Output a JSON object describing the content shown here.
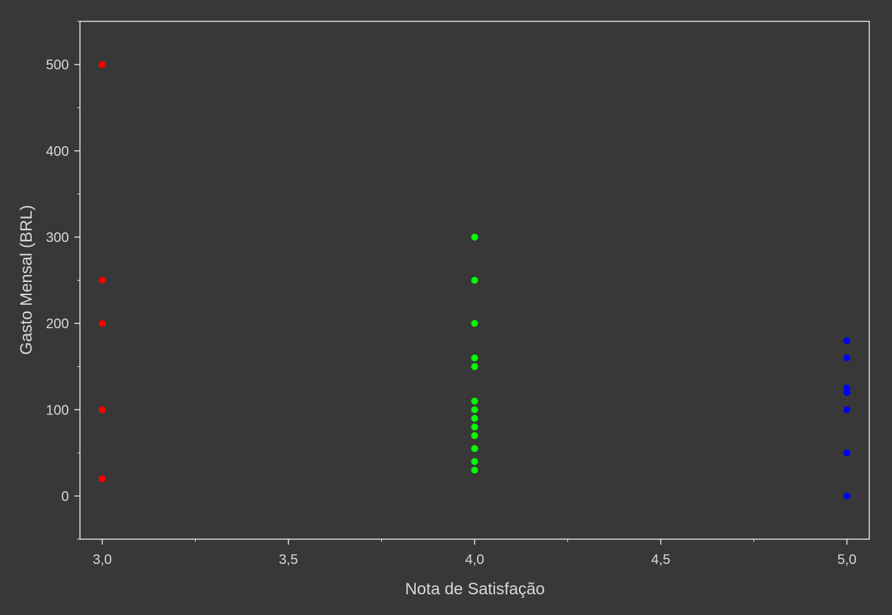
{
  "chart_data": {
    "type": "scatter",
    "title": "",
    "xlabel": "Nota de Satisfação",
    "ylabel": "Gasto Mensal (BRL)",
    "xlim": [
      2.94,
      5.06
    ],
    "ylim": [
      -50,
      550
    ],
    "x_ticks": [
      3.0,
      3.5,
      4.0,
      4.5,
      5.0
    ],
    "x_tick_labels": [
      "3,0",
      "3,5",
      "4,0",
      "4,5",
      "5,0"
    ],
    "y_ticks": [
      0,
      100,
      200,
      300,
      400,
      500
    ],
    "y_tick_labels": [
      "0",
      "100",
      "200",
      "300",
      "400",
      "500"
    ],
    "grid": false,
    "legend": "none",
    "colors": {
      "background": "#383838",
      "axis": "#e6e6e6",
      "text": "#d9d9d9"
    },
    "series": [
      {
        "color": "#ff0000",
        "points": [
          {
            "x": 3,
            "y": 500
          },
          {
            "x": 3,
            "y": 250
          },
          {
            "x": 3,
            "y": 200
          },
          {
            "x": 3,
            "y": 100
          },
          {
            "x": 3,
            "y": 20
          }
        ]
      },
      {
        "color": "#00ff00",
        "points": [
          {
            "x": 4,
            "y": 300
          },
          {
            "x": 4,
            "y": 250
          },
          {
            "x": 4,
            "y": 200
          },
          {
            "x": 4,
            "y": 160
          },
          {
            "x": 4,
            "y": 150
          },
          {
            "x": 4,
            "y": 110
          },
          {
            "x": 4,
            "y": 100
          },
          {
            "x": 4,
            "y": 90
          },
          {
            "x": 4,
            "y": 80
          },
          {
            "x": 4,
            "y": 70
          },
          {
            "x": 4,
            "y": 55
          },
          {
            "x": 4,
            "y": 40
          },
          {
            "x": 4,
            "y": 30
          }
        ]
      },
      {
        "color": "#0000ff",
        "points": [
          {
            "x": 5,
            "y": 180
          },
          {
            "x": 5,
            "y": 160
          },
          {
            "x": 5,
            "y": 125
          },
          {
            "x": 5,
            "y": 120
          },
          {
            "x": 5,
            "y": 100
          },
          {
            "x": 5,
            "y": 50
          },
          {
            "x": 5,
            "y": 0
          }
        ]
      }
    ]
  }
}
